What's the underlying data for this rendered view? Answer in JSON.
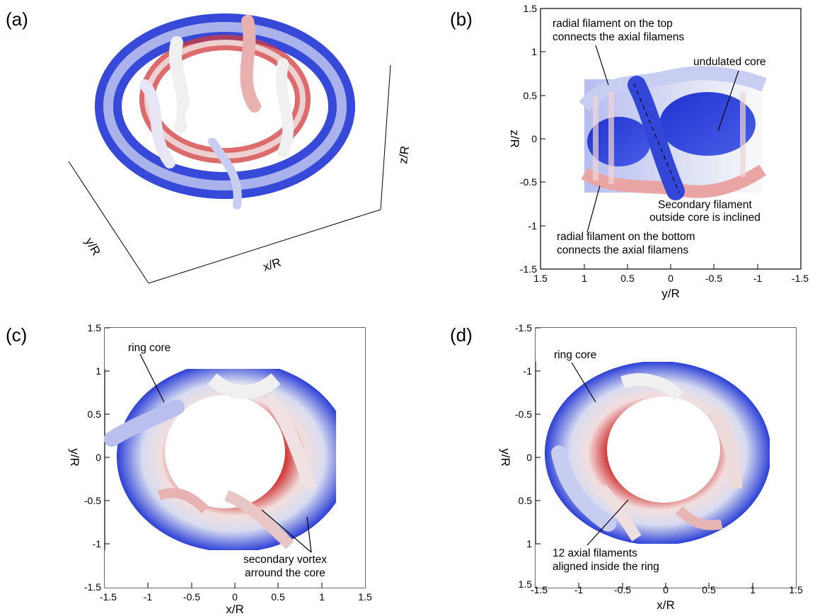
{
  "panels": {
    "a": {
      "label": "(a)",
      "axes": {
        "x": "x/R",
        "y": "y/R",
        "z": "z/R"
      }
    },
    "b": {
      "label": "(b)",
      "xlabel": "y/R",
      "ylabel": "z/R",
      "xticks": [
        "1.5",
        "1",
        "0.5",
        "0",
        "-0.5",
        "-1",
        "-1.5"
      ],
      "yticks": [
        "1.5",
        "1",
        "0.5",
        "0",
        "-0.5",
        "-1",
        "-1.5"
      ],
      "annotations": [
        "radial filament on the top",
        "connects the axial filamens",
        "undulated core",
        "Secondary filament",
        "outside core is inclined",
        "radial filament on the bottom",
        "connects the axial filamens"
      ]
    },
    "c": {
      "label": "(c)",
      "xlabel": "x/R",
      "ylabel": "y/R",
      "xticks": [
        "-1.5",
        "-1",
        "-0.5",
        "0",
        "0.5",
        "1",
        "1.5"
      ],
      "yticks": [
        "1.5",
        "1",
        "0.5",
        "0",
        "-0.5",
        "-1",
        "-1.5"
      ],
      "annotations": [
        "ring core",
        "secondary vortex",
        "arround the core"
      ]
    },
    "d": {
      "label": "(d)",
      "xlabel": "x/R",
      "ylabel": "y/R",
      "xticks": [
        "-1.5",
        "-1",
        "-0.5",
        "0",
        "0.5",
        "1",
        "1.5"
      ],
      "yticks": [
        "-1.5",
        "-1",
        "-0.5",
        "0",
        "0.5",
        "1",
        "1.5"
      ],
      "annotations": [
        "ring core",
        "12 axial filaments",
        "aligned inside the ring"
      ]
    }
  },
  "colors": {
    "blue": "#2b3fd6",
    "white": "#eeeeee",
    "red": "#d23a3a"
  }
}
